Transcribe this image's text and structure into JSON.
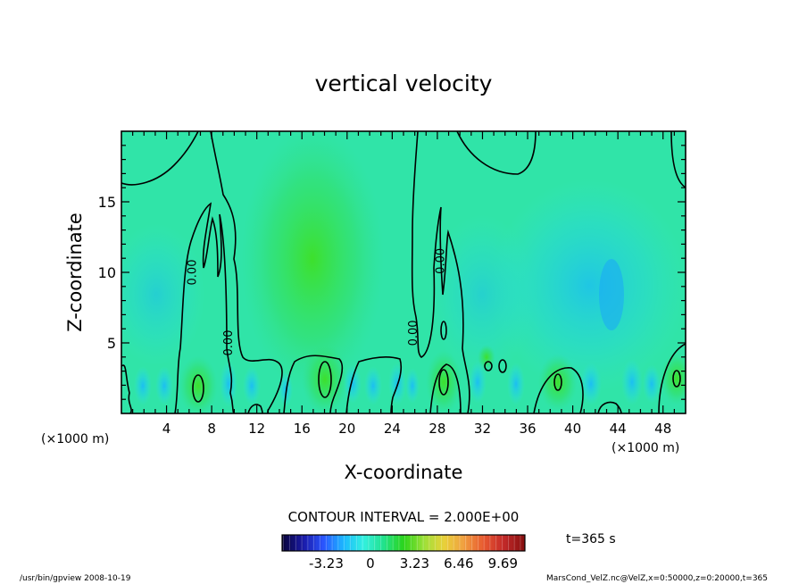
{
  "chart_data": {
    "type": "heatmap",
    "title": "vertical velocity",
    "xlabel": "X-coordinate",
    "ylabel": "Z-coordinate",
    "x_unit_left": "(×1000 m)",
    "x_unit_right": "(×1000 m)",
    "xlim": [
      0,
      50
    ],
    "ylim": [
      0,
      20
    ],
    "x_ticks": [
      4,
      8,
      12,
      16,
      20,
      24,
      28,
      32,
      36,
      40,
      44,
      48
    ],
    "y_ticks": [
      5,
      10,
      15
    ],
    "contour_labels": [
      {
        "text": "0.00",
        "x": 6.6,
        "y": 10.0
      },
      {
        "text": "0.00",
        "x": 9.8,
        "y": 5.0
      },
      {
        "text": "0.00",
        "x": 26.2,
        "y": 5.7
      },
      {
        "text": "0.00",
        "x": 28.6,
        "y": 10.8
      }
    ],
    "contour_interval": "CONTOUR INTERVAL = 2.000E+00",
    "time_label": "t=365 s",
    "colorbar": {
      "ticks": [
        "-3.23",
        "0",
        "3.23",
        "6.46",
        "9.69"
      ],
      "values": [
        -3.23,
        0,
        3.23,
        6.46,
        9.69
      ],
      "min": -6.46,
      "max": 11.3,
      "colors": [
        "#0a0540",
        "#1a1aa8",
        "#2b55ff",
        "#1cb8ff",
        "#33f0e0",
        "#22e28c",
        "#2bd41a",
        "#9ae038",
        "#e8d23a",
        "#f0a040",
        "#e85a30",
        "#c42a2a",
        "#8a1010"
      ]
    }
  },
  "footer": {
    "left": "/usr/bin/gpview   2008-10-19",
    "right": "MarsCond_VelZ.nc@VelZ,x=0:50000,z=0:20000,t=365"
  }
}
